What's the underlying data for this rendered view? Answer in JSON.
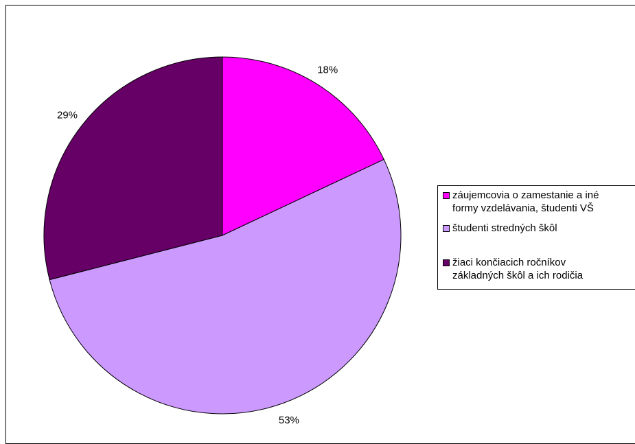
{
  "chart_data": {
    "type": "pie",
    "slices": [
      {
        "label": "záujemcovia o zamestanie a iné formy vzdelávania, študenti VŠ",
        "value": 18,
        "display": "18%",
        "color": "#ff00ff"
      },
      {
        "label": "študenti stredných škôl",
        "value": 53,
        "display": "53%",
        "color": "#cc99ff"
      },
      {
        "label": "žiaci končiacich ročníkov základných škôl a ich rodičia",
        "value": 29,
        "display": "29%",
        "color": "#660066"
      }
    ],
    "start_angle": "12 o'clock",
    "direction": "clockwise",
    "legend_position": "right"
  },
  "legend": {
    "items": [
      {
        "text": "záujemcovia o zamestanie a iné\nformy vzdelávania, študenti VŠ",
        "color": "#ff00ff"
      },
      {
        "text": "študenti stredných škôl",
        "color": "#cc99ff"
      },
      {
        "text": "žiaci končiacich ročníkov\nzákladných škôl a ich rodičia",
        "color": "#660066"
      }
    ]
  }
}
